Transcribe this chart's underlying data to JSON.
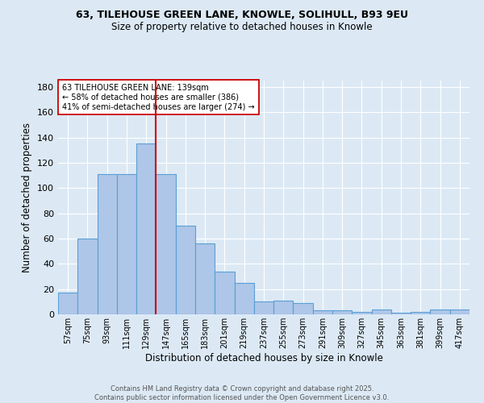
{
  "title1": "63, TILEHOUSE GREEN LANE, KNOWLE, SOLIHULL, B93 9EU",
  "title2": "Size of property relative to detached houses in Knowle",
  "xlabel": "Distribution of detached houses by size in Knowle",
  "ylabel": "Number of detached properties",
  "categories": [
    "57sqm",
    "75sqm",
    "93sqm",
    "111sqm",
    "129sqm",
    "147sqm",
    "165sqm",
    "183sqm",
    "201sqm",
    "219sqm",
    "237sqm",
    "255sqm",
    "273sqm",
    "291sqm",
    "309sqm",
    "327sqm",
    "345sqm",
    "363sqm",
    "381sqm",
    "399sqm",
    "417sqm"
  ],
  "values": [
    17,
    60,
    111,
    111,
    135,
    111,
    70,
    56,
    34,
    25,
    10,
    11,
    9,
    3,
    3,
    2,
    4,
    1,
    2,
    4,
    4
  ],
  "bar_color": "#aec6e8",
  "bar_edge_color": "#5a9fd4",
  "background_color": "#dce9f5",
  "grid_color": "#ffffff",
  "vline_position": 4.5,
  "vline_color": "#cc0000",
  "annotation_text": "63 TILEHOUSE GREEN LANE: 139sqm\n← 58% of detached houses are smaller (386)\n41% of semi-detached houses are larger (274) →",
  "annotation_box_color": "#ffffff",
  "annotation_box_edge": "#cc0000",
  "footer1": "Contains HM Land Registry data © Crown copyright and database right 2025.",
  "footer2": "Contains public sector information licensed under the Open Government Licence v3.0.",
  "ylim": [
    0,
    185
  ],
  "yticks": [
    0,
    20,
    40,
    60,
    80,
    100,
    120,
    140,
    160,
    180
  ]
}
